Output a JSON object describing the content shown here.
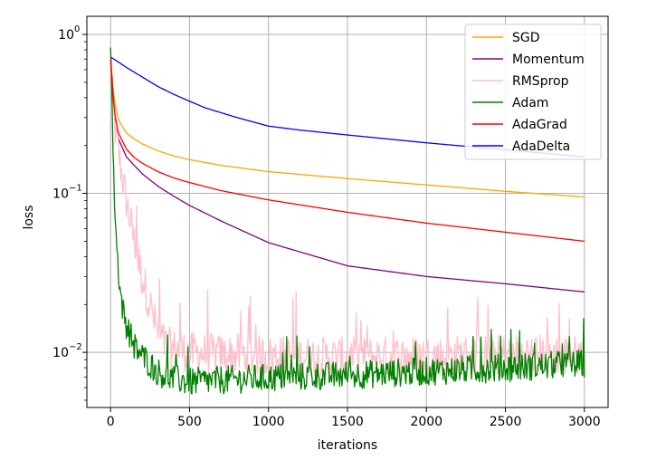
{
  "chart_data": {
    "type": "line",
    "xlabel": "iterations",
    "ylabel": "loss",
    "yscale": "log",
    "xlim": [
      -150,
      3150
    ],
    "ylim": [
      0.0045,
      1.3
    ],
    "xticks": [
      0,
      500,
      1000,
      1500,
      2000,
      2500,
      3000
    ],
    "xtick_labels": [
      "0",
      "500",
      "1000",
      "1500",
      "2000",
      "2500",
      "3000"
    ],
    "yticks": [
      {
        "value": 1.0,
        "base": "10",
        "exp": "0"
      },
      {
        "value": 0.1,
        "base": "10",
        "exp": "−1"
      },
      {
        "value": 0.01,
        "base": "10",
        "exp": "−2"
      }
    ],
    "grid": true,
    "legend_position": "top-right",
    "series": [
      {
        "name": "SGD",
        "color": "#FFA500",
        "x": [
          0,
          25,
          50,
          100,
          150,
          200,
          300,
          400,
          500,
          700,
          1000,
          1500,
          2000,
          2500,
          3000
        ],
        "values": [
          0.7,
          0.38,
          0.29,
          0.24,
          0.22,
          0.205,
          0.185,
          0.172,
          0.163,
          0.15,
          0.137,
          0.124,
          0.113,
          0.103,
          0.095
        ]
      },
      {
        "name": "Momentum",
        "color": "#800080",
        "x": [
          0,
          25,
          50,
          100,
          150,
          200,
          300,
          400,
          500,
          700,
          1000,
          1500,
          2000,
          2500,
          3000
        ],
        "values": [
          0.7,
          0.3,
          0.22,
          0.17,
          0.15,
          0.133,
          0.111,
          0.096,
          0.084,
          0.067,
          0.049,
          0.035,
          0.03,
          0.027,
          0.024
        ]
      },
      {
        "name": "RMSprop",
        "color": "#FFC0CB",
        "noisy": true,
        "x": [
          0,
          20,
          50,
          100,
          150,
          200,
          250,
          300,
          350,
          400,
          500,
          700,
          1000,
          1500,
          2000,
          2500,
          3000
        ],
        "values": [
          0.7,
          0.3,
          0.18,
          0.09,
          0.05,
          0.03,
          0.02,
          0.013,
          0.011,
          0.0105,
          0.01,
          0.0097,
          0.0095,
          0.0093,
          0.0095,
          0.0097,
          0.0096
        ]
      },
      {
        "name": "Adam",
        "color": "#008000",
        "noisy": true,
        "x": [
          0,
          10,
          20,
          40,
          60,
          80,
          100,
          150,
          200,
          300,
          400,
          500,
          700,
          1000,
          1500,
          2000,
          2500,
          3000
        ],
        "values": [
          1.0,
          0.35,
          0.12,
          0.045,
          0.025,
          0.018,
          0.015,
          0.011,
          0.0095,
          0.0075,
          0.0068,
          0.0065,
          0.0067,
          0.0069,
          0.0072,
          0.0076,
          0.008,
          0.0085
        ]
      },
      {
        "name": "AdaGrad",
        "color": "#FF0000",
        "x": [
          0,
          25,
          50,
          100,
          150,
          200,
          300,
          400,
          500,
          700,
          1000,
          1500,
          2000,
          2500,
          3000
        ],
        "values": [
          0.7,
          0.32,
          0.24,
          0.19,
          0.168,
          0.155,
          0.137,
          0.125,
          0.117,
          0.104,
          0.091,
          0.076,
          0.065,
          0.057,
          0.05
        ]
      },
      {
        "name": "AdaDelta",
        "color": "#0000FF",
        "x": [
          0,
          50,
          100,
          200,
          300,
          400,
          500,
          600,
          800,
          1000,
          1200,
          1500,
          2000,
          2500,
          3000
        ],
        "values": [
          0.72,
          0.67,
          0.62,
          0.54,
          0.47,
          0.42,
          0.38,
          0.345,
          0.3,
          0.265,
          0.25,
          0.233,
          0.208,
          0.188,
          0.17
        ]
      }
    ]
  }
}
